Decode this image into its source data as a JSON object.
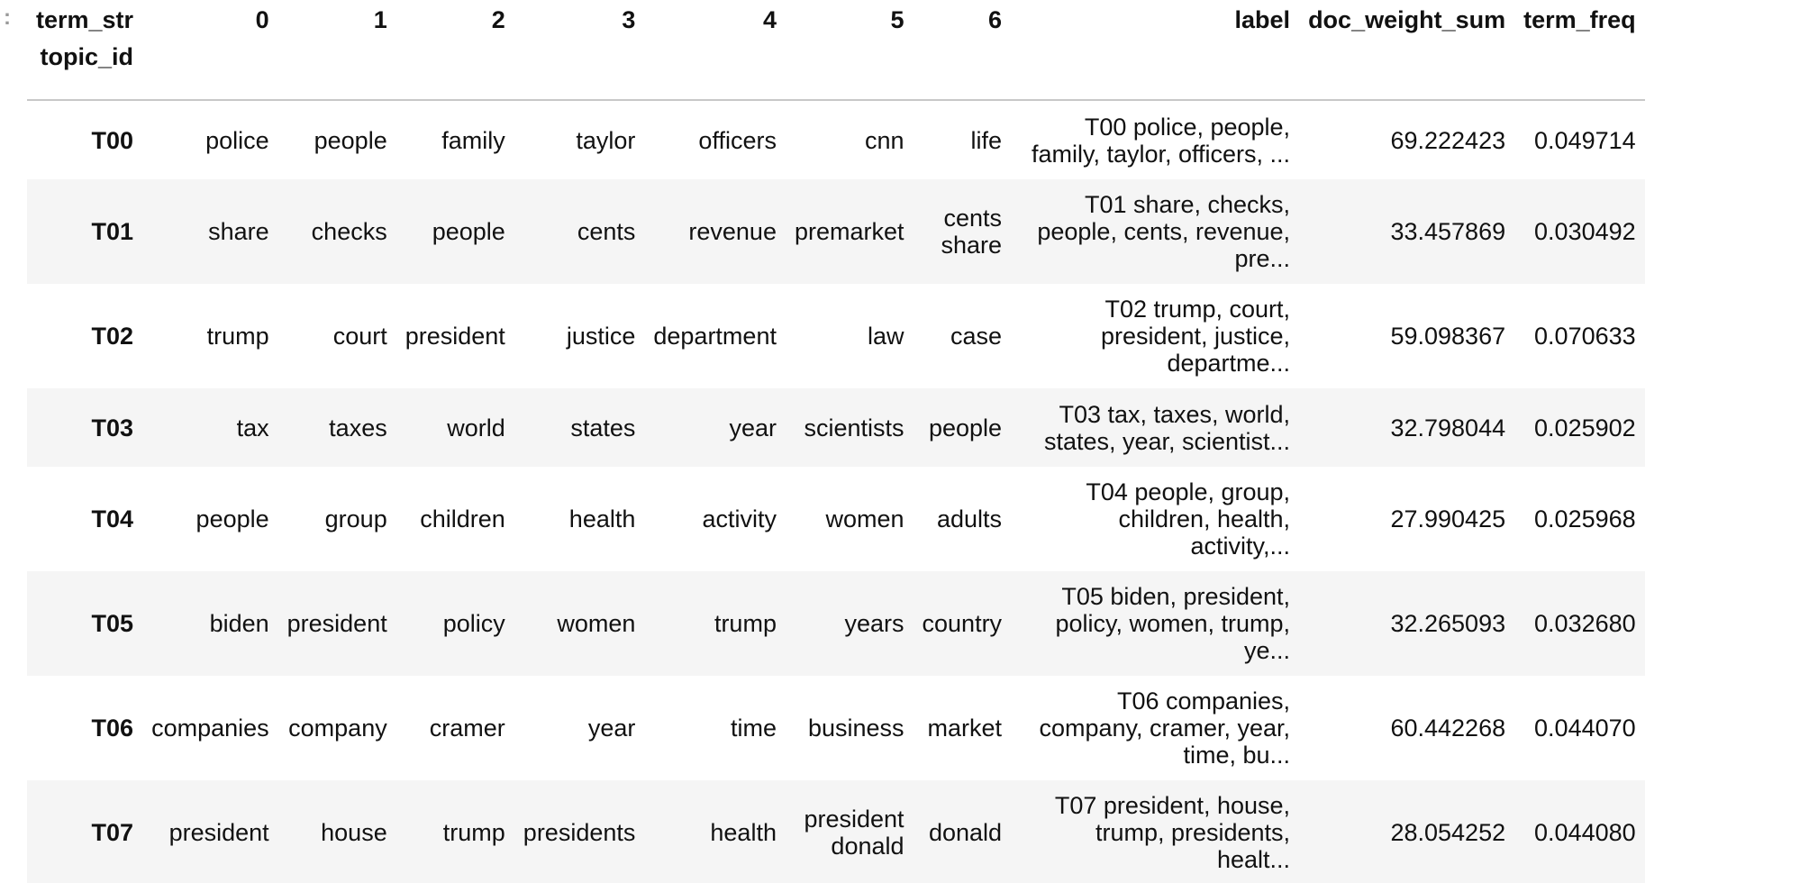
{
  "prompt_marker": ":",
  "table": {
    "columns_label": "term_str",
    "index_label": "topic_id",
    "columns": [
      "0",
      "1",
      "2",
      "3",
      "4",
      "5",
      "6",
      "label",
      "doc_weight_sum",
      "term_freq"
    ],
    "rows": [
      {
        "id": "T00",
        "terms": [
          "police",
          "people",
          "family",
          "taylor",
          "officers",
          "cnn",
          "life"
        ],
        "label_lines": [
          "T00 police, people,",
          "family, taylor, officers, ..."
        ],
        "doc_weight_sum": "69.222423",
        "term_freq": "0.049714"
      },
      {
        "id": "T01",
        "terms": [
          "share",
          "checks",
          "people",
          "cents",
          "revenue",
          "premarket",
          "cents share"
        ],
        "label_lines": [
          "T01 share, checks,",
          "people, cents, revenue,",
          "pre..."
        ],
        "doc_weight_sum": "33.457869",
        "term_freq": "0.030492"
      },
      {
        "id": "T02",
        "terms": [
          "trump",
          "court",
          "president",
          "justice",
          "department",
          "law",
          "case"
        ],
        "label_lines": [
          "T02 trump, court,",
          "president, justice,",
          "departme..."
        ],
        "doc_weight_sum": "59.098367",
        "term_freq": "0.070633"
      },
      {
        "id": "T03",
        "terms": [
          "tax",
          "taxes",
          "world",
          "states",
          "year",
          "scientists",
          "people"
        ],
        "label_lines": [
          "T03 tax, taxes, world,",
          "states, year, scientist..."
        ],
        "doc_weight_sum": "32.798044",
        "term_freq": "0.025902"
      },
      {
        "id": "T04",
        "terms": [
          "people",
          "group",
          "children",
          "health",
          "activity",
          "women",
          "adults"
        ],
        "label_lines": [
          "T04 people, group,",
          "children, health,",
          "activity,..."
        ],
        "doc_weight_sum": "27.990425",
        "term_freq": "0.025968"
      },
      {
        "id": "T05",
        "terms": [
          "biden",
          "president",
          "policy",
          "women",
          "trump",
          "years",
          "country"
        ],
        "label_lines": [
          "T05 biden, president,",
          "policy, women, trump,",
          "ye..."
        ],
        "doc_weight_sum": "32.265093",
        "term_freq": "0.032680"
      },
      {
        "id": "T06",
        "terms": [
          "companies",
          "company",
          "cramer",
          "year",
          "time",
          "business",
          "market"
        ],
        "label_lines": [
          "T06 companies,",
          "company, cramer, year,",
          "time, bu..."
        ],
        "doc_weight_sum": "60.442268",
        "term_freq": "0.044070"
      },
      {
        "id": "T07",
        "terms": [
          "president",
          "house",
          "trump",
          "presidents",
          "health",
          "president donald",
          "donald"
        ],
        "label_lines": [
          "T07 president, house,",
          "trump, presidents,",
          "healt..."
        ],
        "doc_weight_sum": "28.054252",
        "term_freq": "0.044080"
      }
    ]
  }
}
